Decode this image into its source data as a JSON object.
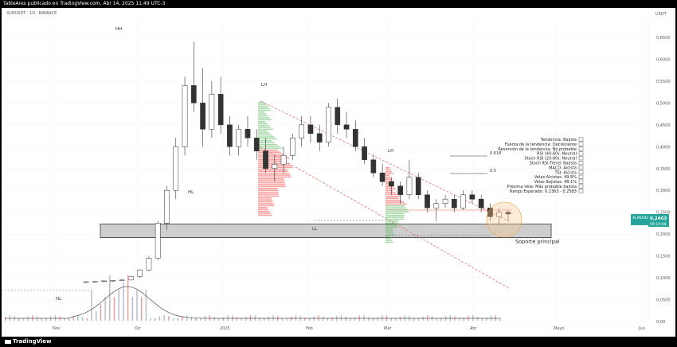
{
  "header": {
    "publisher_line": "TableAres publicado en TradingView.com, Abr 14, 2025 11:49 UTC-3"
  },
  "symbol_line": "XLMUSDT · 1D · BINANCE",
  "currency": "USDT",
  "price_label": {
    "symbol": "XLMUSDT",
    "price": "0,2463",
    "countdown": "09:10:08",
    "color": "#26a69a"
  },
  "chart_data": {
    "type": "candlestick",
    "x_ticks": [
      "Nov",
      "Dic",
      "2025",
      "Feb",
      "Mar",
      "Abr",
      "Mayo",
      "Jun"
    ],
    "y_ticks": [
      "0,6500",
      "0,6000",
      "0,5500",
      "0,5000",
      "0,4500",
      "0,4000",
      "0,3500",
      "0,3000",
      "0,2500",
      "0,2000",
      "0,1500",
      "0,1000",
      "0,0500",
      "0,00"
    ],
    "ylim": [
      0,
      0.67
    ],
    "y_scale": "linear",
    "colors": {
      "up": "#26a69a",
      "down": "#ef5350",
      "wick": "#333333",
      "zone": "#bdbdbd",
      "channel": "#e57373",
      "rsi_panel_line": "#555555"
    },
    "pivot_labels": [
      "HH",
      "HL",
      "LH",
      "LL",
      "LH",
      "HL"
    ],
    "support_zone": {
      "low": 0.192,
      "high": 0.223,
      "label": "Soporte principal"
    },
    "fib_levels": [
      {
        "ratio": "0.618",
        "price": 0.4
      },
      {
        "ratio": "0.5",
        "price": 0.35
      }
    ],
    "sentiment_panel": [
      "Tendencia: Bajista",
      "Fuerza de la tendencia: Decreciente",
      "Reversión de la tendencia: No probable",
      "RSI (40-60): Neutral",
      "Stoch RSI (20-80): Neutral",
      "Stoch RSI Trend: Bajista",
      "MACD: Alcista",
      "TSI: Alcista",
      "Velas Alcistas: 49.8%",
      "Velas Bajistas: 48.1%",
      "Próxima Vela: Más probable bajista",
      "Rango Esperado: 0.2363 - 0.2583"
    ],
    "candles_approx": [
      [
        0.09,
        0.092,
        0.088,
        0.091
      ],
      [
        0.091,
        0.093,
        0.089,
        0.092
      ],
      [
        0.092,
        0.094,
        0.09,
        0.093
      ],
      [
        0.093,
        0.095,
        0.091,
        0.094
      ],
      [
        0.094,
        0.097,
        0.092,
        0.095
      ],
      [
        0.095,
        0.104,
        0.094,
        0.103
      ],
      [
        0.103,
        0.12,
        0.1,
        0.118
      ],
      [
        0.118,
        0.15,
        0.115,
        0.145
      ],
      [
        0.145,
        0.23,
        0.14,
        0.225
      ],
      [
        0.225,
        0.31,
        0.21,
        0.3
      ],
      [
        0.3,
        0.42,
        0.28,
        0.4
      ],
      [
        0.4,
        0.56,
        0.38,
        0.54
      ],
      [
        0.54,
        0.64,
        0.48,
        0.5
      ],
      [
        0.5,
        0.58,
        0.4,
        0.44
      ],
      [
        0.44,
        0.55,
        0.42,
        0.52
      ],
      [
        0.52,
        0.56,
        0.43,
        0.45
      ],
      [
        0.45,
        0.47,
        0.38,
        0.4
      ],
      [
        0.4,
        0.45,
        0.38,
        0.44
      ],
      [
        0.44,
        0.47,
        0.4,
        0.42
      ],
      [
        0.42,
        0.44,
        0.37,
        0.39
      ],
      [
        0.39,
        0.42,
        0.34,
        0.35
      ],
      [
        0.35,
        0.38,
        0.32,
        0.36
      ],
      [
        0.36,
        0.4,
        0.34,
        0.38
      ],
      [
        0.38,
        0.43,
        0.37,
        0.42
      ],
      [
        0.42,
        0.47,
        0.4,
        0.45
      ],
      [
        0.45,
        0.47,
        0.41,
        0.43
      ],
      [
        0.43,
        0.45,
        0.39,
        0.41
      ],
      [
        0.41,
        0.5,
        0.4,
        0.49
      ],
      [
        0.49,
        0.51,
        0.43,
        0.45
      ],
      [
        0.45,
        0.48,
        0.42,
        0.44
      ],
      [
        0.44,
        0.46,
        0.39,
        0.4
      ],
      [
        0.4,
        0.42,
        0.36,
        0.37
      ],
      [
        0.37,
        0.38,
        0.33,
        0.34
      ],
      [
        0.34,
        0.36,
        0.31,
        0.32
      ],
      [
        0.32,
        0.33,
        0.29,
        0.31
      ],
      [
        0.31,
        0.32,
        0.27,
        0.29
      ],
      [
        0.29,
        0.37,
        0.28,
        0.33
      ],
      [
        0.33,
        0.34,
        0.28,
        0.29
      ],
      [
        0.29,
        0.3,
        0.25,
        0.26
      ],
      [
        0.26,
        0.28,
        0.23,
        0.27
      ],
      [
        0.27,
        0.29,
        0.26,
        0.28
      ],
      [
        0.28,
        0.29,
        0.25,
        0.26
      ],
      [
        0.26,
        0.3,
        0.255,
        0.29
      ],
      [
        0.29,
        0.3,
        0.27,
        0.28
      ],
      [
        0.28,
        0.29,
        0.25,
        0.26
      ],
      [
        0.26,
        0.27,
        0.23,
        0.24
      ],
      [
        0.24,
        0.26,
        0.22,
        0.25
      ],
      [
        0.25,
        0.255,
        0.23,
        0.246
      ]
    ]
  }
}
